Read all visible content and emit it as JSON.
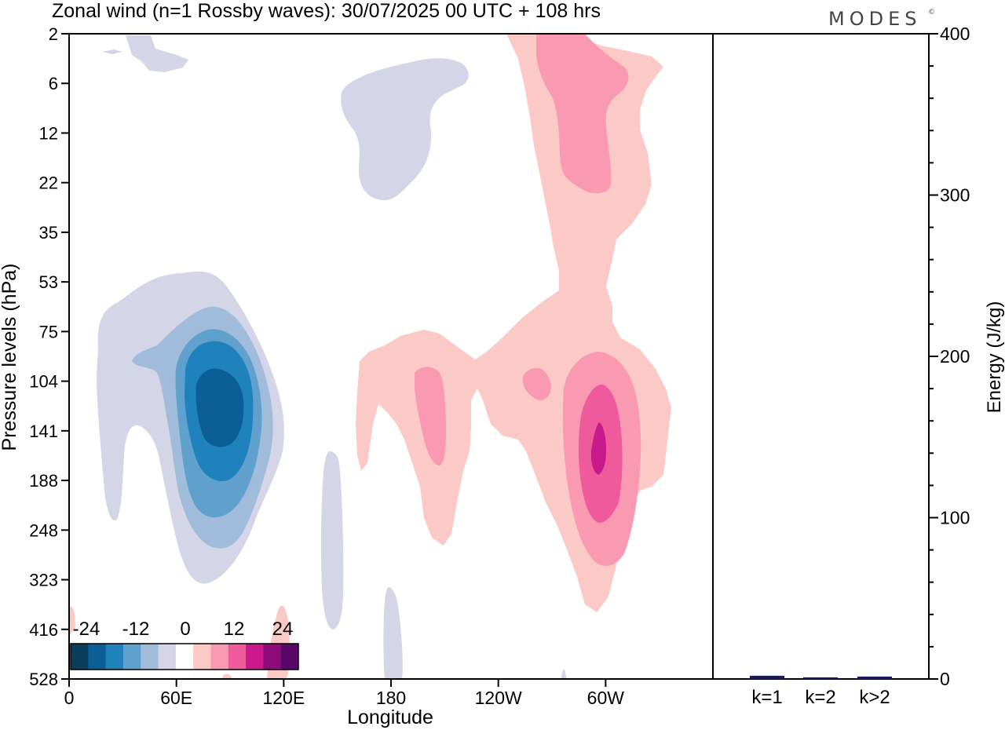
{
  "chart_data": {
    "type": "heatmap",
    "title": "Zonal wind (n=1 Rossby waves):  30/07/2025  00 UTC  + 108 hrs",
    "brand": "MODES",
    "brand_mark": "©",
    "xlabel": "Longitude",
    "ylabel": "Pressure levels (hPa)",
    "x_ticks": [
      "0",
      "60E",
      "120E",
      "180",
      "120W",
      "60W"
    ],
    "x_tick_values_deg": [
      0,
      60,
      120,
      180,
      240,
      300
    ],
    "x_range_deg": [
      0,
      360
    ],
    "y_ticks": [
      "2",
      "6",
      "12",
      "22",
      "35",
      "53",
      "75",
      "104",
      "141",
      "188",
      "248",
      "323",
      "416",
      "528"
    ],
    "y_direction": "top-to-bottom",
    "colorbar": {
      "labels": [
        "-24",
        "-12",
        "0",
        "12",
        "24"
      ],
      "colors": [
        "#0b3d5c",
        "#0b5f96",
        "#1f82bd",
        "#5fa1cc",
        "#a1bbdb",
        "#d4d6e8",
        "#ffffff",
        "#fbcac6",
        "#f99ab2",
        "#ee5a9b",
        "#c9198c",
        "#8f0d7a",
        "#5a076a"
      ],
      "placement": "bottom-left"
    },
    "contours": [
      {
        "name": "west-pacific-weak-negative",
        "level": "-4",
        "color": "#d4d6e8"
      },
      {
        "name": "west-pacific-negative-8",
        "level": "-8",
        "color": "#a1bbdb"
      },
      {
        "name": "west-pacific-negative-12",
        "level": "-12",
        "color": "#5fa1cc"
      },
      {
        "name": "west-pacific-negative-16",
        "level": "-16",
        "color": "#1f82bd"
      },
      {
        "name": "west-pacific-negative-20",
        "level": "-20",
        "color": "#0b5f96"
      },
      {
        "name": "east-pacific-positive-4",
        "level": "4",
        "color": "#fbcac6"
      },
      {
        "name": "east-pacific-positive-8",
        "level": "8",
        "color": "#f99ab2"
      },
      {
        "name": "east-pacific-positive-12",
        "level": "12",
        "color": "#ee5a9b"
      },
      {
        "name": "east-pacific-positive-16",
        "level": "16",
        "color": "#c9198c"
      }
    ],
    "energy_panel": {
      "ylabel": "Energy (J/kg)",
      "y_ticks": [
        "0",
        "100",
        "200",
        "300",
        "400"
      ],
      "ylim": [
        0,
        400
      ],
      "categories": [
        "k=1",
        "k=2",
        "k>2"
      ],
      "values": [
        2,
        1,
        1.5
      ],
      "bar_color": "#1a1a5e"
    }
  }
}
